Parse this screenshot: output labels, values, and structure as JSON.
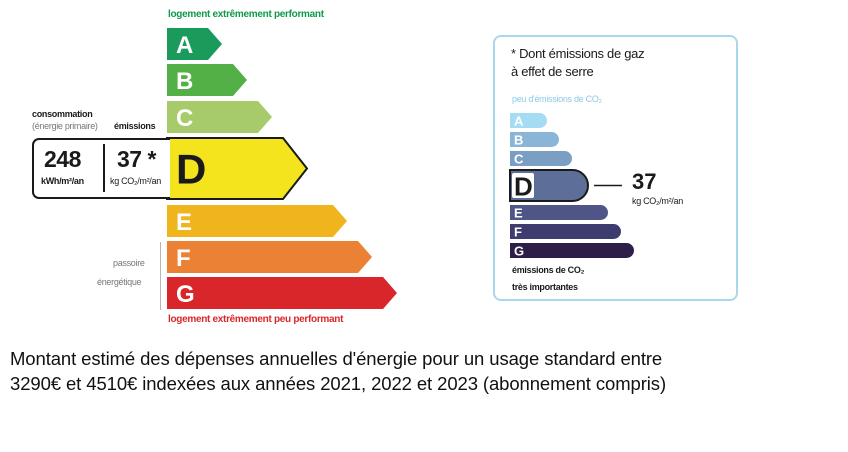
{
  "energy_scale": {
    "top_label": "logement extrêmement performant",
    "bottom_label": "logement extrêmement peu performant",
    "consumption_label_1": "consommation",
    "consumption_label_2": "(énergie primaire)",
    "emissions_label": "émissions",
    "consumption_value": "248",
    "consumption_unit": "kWh/m²/an",
    "emissions_value": "37 *",
    "emissions_unit": "kg CO₂/m²/an",
    "side_label_1": "passoire",
    "side_label_2": "énergétique",
    "current_class": "D",
    "classes": [
      {
        "letter": "A",
        "color": "#1a9b5c"
      },
      {
        "letter": "B",
        "color": "#53b047"
      },
      {
        "letter": "C",
        "color": "#a7cb6a"
      },
      {
        "letter": "D",
        "color": "#f4e41d"
      },
      {
        "letter": "E",
        "color": "#f0b41c"
      },
      {
        "letter": "F",
        "color": "#eb8134"
      },
      {
        "letter": "G",
        "color": "#d9262b"
      }
    ]
  },
  "ges_panel": {
    "title_1": "* Dont émissions de gaz",
    "title_2": "à effet de serre",
    "top_label": "peu d'émissions de CO₂",
    "bottom_label_1": "émissions de CO₂",
    "bottom_label_2": "très importantes",
    "value": "37",
    "unit": "kg CO₂/m²/an",
    "current_class": "D",
    "classes": [
      {
        "letter": "A",
        "color": "#a5dcf4"
      },
      {
        "letter": "B",
        "color": "#8bb5d6"
      },
      {
        "letter": "C",
        "color": "#7a9fc2"
      },
      {
        "letter": "D",
        "color": "#5d6f98"
      },
      {
        "letter": "E",
        "color": "#4f5586"
      },
      {
        "letter": "F",
        "color": "#3e3b6e"
      },
      {
        "letter": "G",
        "color": "#2e1f48"
      }
    ]
  },
  "footer_line_1": "Montant estimé des dépenses annuelles d'énergie pour un usage standard entre",
  "footer_line_2": "3290€ et 4510€ indexées aux années 2021, 2022 et 2023 (abonnement compris)"
}
